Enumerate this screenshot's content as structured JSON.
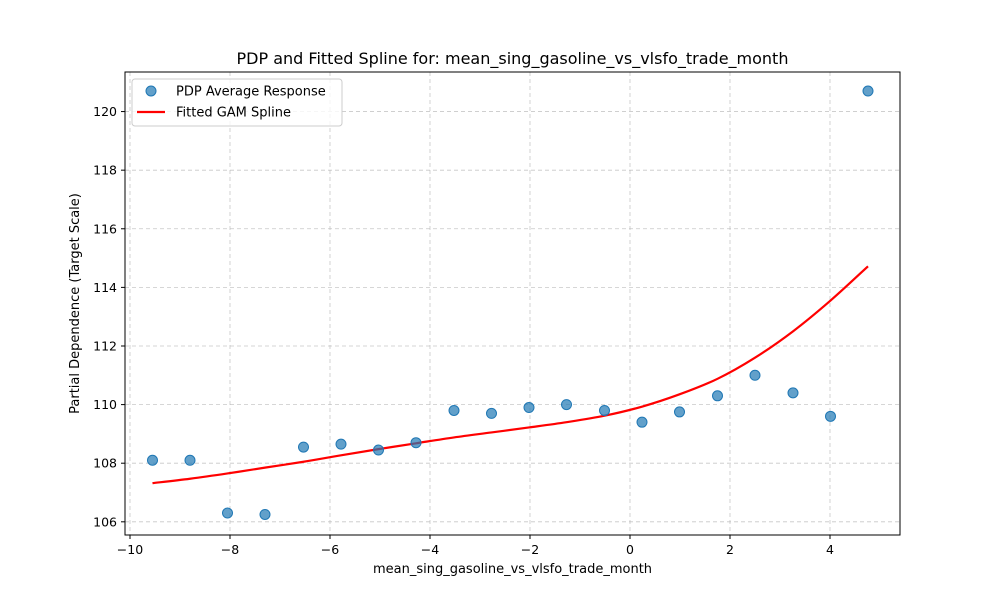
{
  "chart_data": {
    "type": "scatter",
    "title": "PDP and Fitted Spline for: mean_sing_gasoline_vs_vlsfo_trade_month",
    "xlabel": "mean_sing_gasoline_vs_vlsfo_trade_month",
    "ylabel": "Partial Dependence (Target Scale)",
    "xlim": [
      -10.1,
      5.4
    ],
    "ylim": [
      105.55,
      121.35
    ],
    "xticks": [
      -10,
      -8,
      -6,
      -4,
      -2,
      0,
      2,
      4
    ],
    "xtick_labels": [
      "−10",
      "−8",
      "−6",
      "−4",
      "−2",
      "0",
      "2",
      "4"
    ],
    "yticks": [
      106,
      108,
      110,
      112,
      114,
      116,
      118,
      120
    ],
    "ytick_labels": [
      "106",
      "108",
      "110",
      "112",
      "114",
      "116",
      "118",
      "120"
    ],
    "grid": true,
    "legend_position": "top-left",
    "series": [
      {
        "name": "PDP Average Response",
        "kind": "scatter",
        "color": "#1f77b4",
        "x": [
          -9.55,
          -8.8,
          -8.05,
          -7.3,
          -6.53,
          -5.78,
          -5.03,
          -4.28,
          -3.52,
          -2.77,
          -2.02,
          -1.27,
          -0.51,
          0.24,
          0.99,
          1.75,
          2.5,
          3.26,
          4.01,
          4.76
        ],
        "y": [
          108.1,
          108.1,
          106.3,
          106.25,
          108.55,
          108.65,
          108.45,
          108.7,
          109.8,
          109.7,
          109.9,
          110.0,
          109.8,
          109.4,
          109.75,
          110.3,
          111.0,
          110.4,
          109.6,
          120.7
        ]
      },
      {
        "name": "Fitted GAM Spline",
        "kind": "line",
        "color": "#ff0000",
        "x": [
          -9.55,
          -8.8,
          -8.05,
          -7.3,
          -6.53,
          -5.78,
          -5.03,
          -4.28,
          -3.52,
          -2.77,
          -2.02,
          -1.27,
          -0.51,
          0.24,
          0.99,
          1.75,
          2.5,
          3.26,
          4.01,
          4.76
        ],
        "y": [
          107.32,
          107.47,
          107.65,
          107.85,
          108.05,
          108.27,
          108.48,
          108.68,
          108.88,
          109.05,
          109.22,
          109.4,
          109.62,
          109.93,
          110.35,
          110.88,
          111.6,
          112.5,
          113.55,
          114.72
        ]
      }
    ]
  }
}
